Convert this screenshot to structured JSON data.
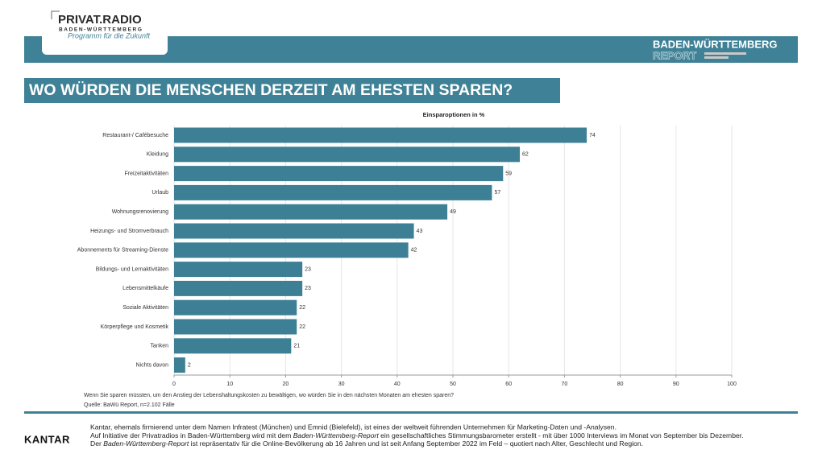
{
  "header": {
    "logo_title": "PRIVAT.RADIO",
    "logo_region": "BADEN-WÜRTTEMBERG",
    "logo_tagline": "Programm für die Zukunft",
    "report_title": "BADEN-WÜRTTEMBERG",
    "report_subtitle": "REPORT"
  },
  "title": "WO WÜRDEN DIE MENSCHEN DERZEIT AM EHESTEN SPAREN?",
  "chart_data": {
    "type": "hbar",
    "subtitle": "Einsparoptionen in %",
    "categories": [
      "Restaurant-/ Cafébesuche",
      "Kleidung",
      "Freizeitaktivitäten",
      "Urlaub",
      "Wohnungsrenovierung",
      "Heizungs- und Stromverbrauch",
      "Abonnements für Streaming-Dienste",
      "Bildungs- und Lernaktivitäten",
      "Lebensmittelkäufe",
      "Soziale Aktivitäten",
      "Körperpflege und Kosmetik",
      "Tanken",
      "Nichts davon"
    ],
    "values": [
      74,
      62,
      59,
      57,
      49,
      43,
      42,
      23,
      23,
      22,
      22,
      21,
      2
    ],
    "color": "#3d7f94",
    "xlim": [
      0,
      100
    ],
    "xticks": [
      0,
      10,
      20,
      30,
      40,
      50,
      60,
      70,
      80,
      90,
      100
    ],
    "grid": true,
    "question": "Wenn Sie sparen müssten, um den Anstieg der Lebenshaltungskosten zu bewältigen, wo würden Sie in den nächsten Monaten am ehesten sparen?",
    "source": "Quelle: BaWü Report, n=2.102 Fälle"
  },
  "footer": {
    "brand": "KANTAR",
    "line1": "Kantar, ehemals firmierend unter dem Namen Infratest (München) und Emnid (Bielefeld), ist eines der weltweit führenden Unternehmen für Marketing-Daten und -Analysen.",
    "line2": [
      "Auf Initiative der Privatradios in Baden-Württemberg wird mit dem ",
      "Baden-Württemberg-Report",
      " ein gesellschaftliches Stimmungsbarometer erstellt - mit über 1000 Interviews im Monat von September bis Dezember."
    ],
    "line3": [
      "Der ",
      "Baden-Württemberg-Report",
      " ist repräsentativ für die Online-Bevölkerung ab 16 Jahren und ist seit Anfang September 2022 im Feld – quotiert nach Alter, Geschlecht und Region."
    ]
  }
}
